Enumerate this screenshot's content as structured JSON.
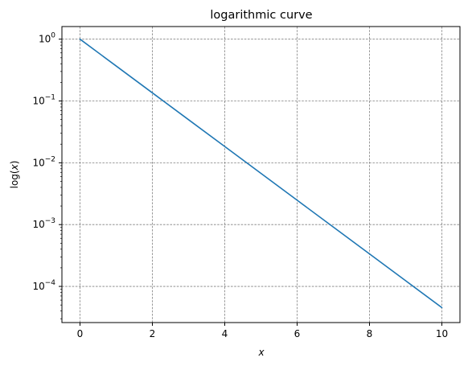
{
  "chart_data": {
    "type": "line",
    "title": "logarithmic curve",
    "xlabel": "x",
    "ylabel": "log(x)",
    "yscale": "log",
    "grid": true,
    "xlim": [
      -0.5,
      10.5
    ],
    "ylim": [
      2.6e-05,
      1.6
    ],
    "xticks": [
      0,
      2,
      4,
      6,
      8,
      10
    ],
    "xtick_labels": [
      "0",
      "2",
      "4",
      "6",
      "8",
      "10"
    ],
    "yticks": [
      0.0001,
      0.001,
      0.01,
      0.1,
      1
    ],
    "ytick_exponents": [
      "−4",
      "−3",
      "−2",
      "−1",
      "0"
    ],
    "ytick_base": "10",
    "series": [
      {
        "color": "#1f77b4",
        "x": [
          0,
          1,
          2,
          3,
          4,
          5,
          6,
          7,
          8,
          9,
          10
        ],
        "y": [
          1.0,
          0.3679,
          0.1353,
          0.04979,
          0.01832,
          0.006738,
          0.002479,
          0.0009119,
          0.0003355,
          0.0001234,
          4.54e-05
        ]
      }
    ]
  }
}
